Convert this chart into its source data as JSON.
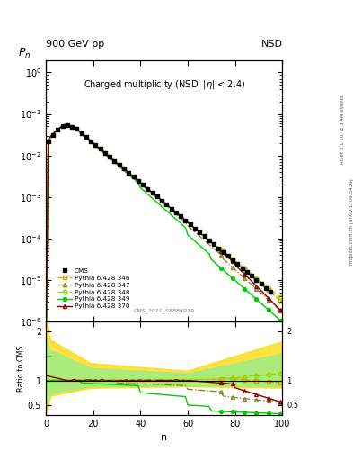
{
  "title_top_left": "900 GeV pp",
  "title_top_right": "NSD",
  "plot_title": "Charged multiplicity (NSD, |\\u03b7| < 2.4)",
  "ylabel_main": "P_n",
  "ylabel_ratio": "Ratio to CMS",
  "xlabel": "n",
  "right_label_top": "Rivet 3.1.10, ≥ 3.4M events",
  "right_label_bot": "mcplots.cern.ch [arXiv:1306.3436]",
  "watermark": "CMS_2011_S8884919",
  "legend_entries": [
    "CMS",
    "Pythia 6.428 346",
    "Pythia 6.428 347",
    "Pythia 6.428 348",
    "Pythia 6.428 349",
    "Pythia 6.428 370"
  ],
  "cms_color": "#000000",
  "p346_color": "#c8a000",
  "p347_color": "#808020",
  "p348_color": "#a0d000",
  "p349_color": "#00cc00",
  "p370_color": "#8b0000",
  "band_yellow_color": "#ffd700",
  "band_green_color": "#90ee90"
}
